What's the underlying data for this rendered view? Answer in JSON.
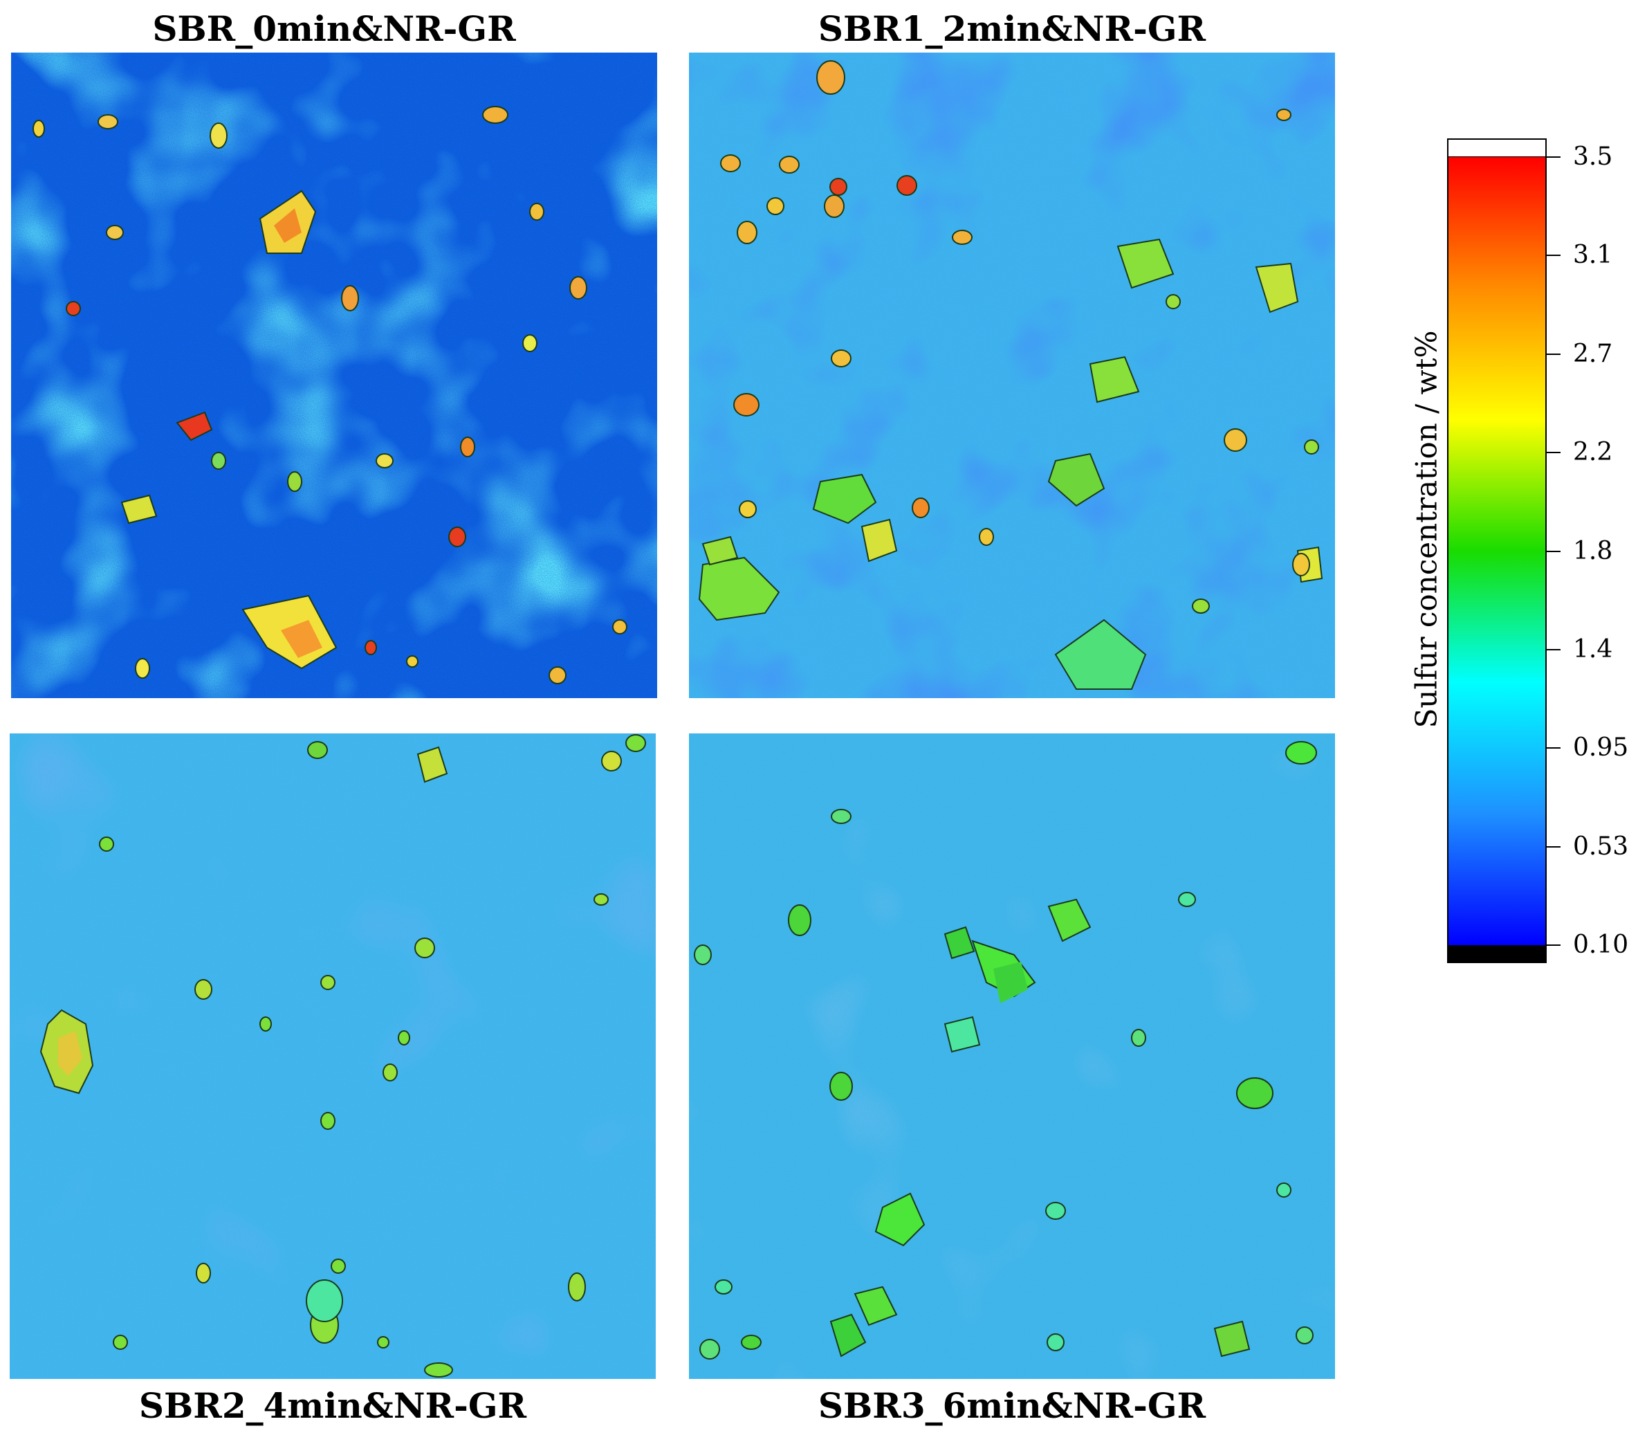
{
  "panels": [
    {
      "title": "SBR_0min&NR-GR",
      "mixing_time_min": 0
    },
    {
      "title": "SBR1_2min&NR-GR",
      "mixing_time_min": 2
    },
    {
      "title": "SBR2_4min&NR-GR",
      "mixing_time_min": 4
    },
    {
      "title": "SBR3_6min&NR-GR",
      "mixing_time_min": 6
    }
  ],
  "colorbar": {
    "label": "Sulfur concentration / wt%",
    "ticks": [
      "3.5",
      "3.1",
      "2.7",
      "2.2",
      "1.8",
      "1.4",
      "0.95",
      "0.53",
      "0.10"
    ],
    "min": 0.1,
    "max": 3.5,
    "over_color": "#ffffff",
    "under_color": "#000000",
    "colors": [
      "#ff0000",
      "#ff8c00",
      "#ffff00",
      "#19dc00",
      "#00ffff",
      "#1e90ff",
      "#0000ff"
    ]
  }
}
